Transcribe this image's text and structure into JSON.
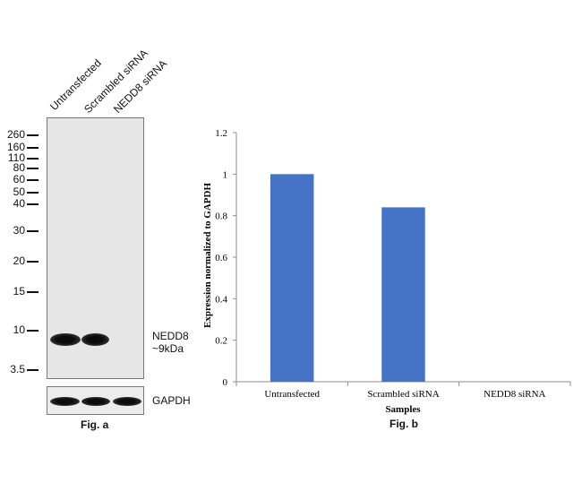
{
  "fig_a": {
    "lanes": [
      "Untransfected",
      "Scrambled siRNA",
      "NEDD8 siRNA"
    ],
    "markers": [
      "260",
      "160",
      "110",
      "80",
      "60",
      "50",
      "40",
      "30",
      "20",
      "15",
      "10",
      "3.5"
    ],
    "band_label_line1": "NEDD8",
    "band_label_line2": "~9kDa",
    "loading_control": "GAPDH",
    "caption": "Fig. a"
  },
  "fig_b": {
    "caption": "Fig. b"
  },
  "chart_data": {
    "type": "bar",
    "categories": [
      "Untransfected",
      "Scrambled siRNA",
      "NEDD8 siRNA"
    ],
    "values": [
      1.0,
      0.84,
      0.0
    ],
    "xlabel": "Samples",
    "ylabel": "Expression normalized to GAPDH",
    "ylim": [
      0,
      1.2
    ],
    "yticks": [
      "0",
      "0.2",
      "0.4",
      "0.6",
      "0.8",
      "1",
      "1.2"
    ],
    "bar_color": "#4472C4",
    "grid": false,
    "legend": "none"
  }
}
